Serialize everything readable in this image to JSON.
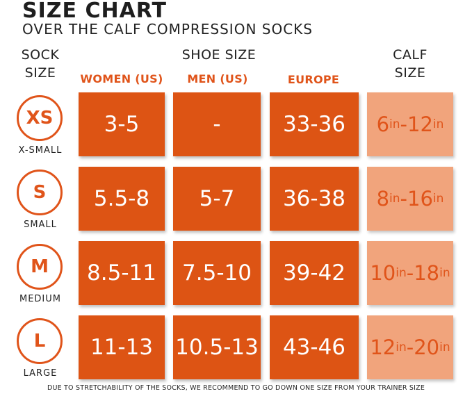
{
  "title": "SIZE CHART",
  "subtitle": "OVER THE CALF COMPRESSION SOCKS",
  "headers": {
    "sock_size": "SOCK SIZE",
    "shoe_size": "SHOE SIZE",
    "women": "WOMEN (US)",
    "men": "MEN (US)",
    "europe": "EUROPE",
    "calf_size": "CALF SIZE"
  },
  "rows": [
    {
      "code": "XS",
      "name": "X-SMALL",
      "women": "3-5",
      "men": "-",
      "europe": "33-36",
      "calf_min": "6",
      "calf_max": "12",
      "unit": "in"
    },
    {
      "code": "S",
      "name": "SMALL",
      "women": "5.5-8",
      "men": "5-7",
      "europe": "36-38",
      "calf_min": "8",
      "calf_max": "16",
      "unit": "in"
    },
    {
      "code": "M",
      "name": "MEDIUM",
      "women": "8.5-11",
      "men": "7.5-10",
      "europe": "39-42",
      "calf_min": "10",
      "calf_max": "18",
      "unit": "in"
    },
    {
      "code": "L",
      "name": "LARGE",
      "women": "11-13",
      "men": "10.5-13",
      "europe": "43-46",
      "calf_min": "12",
      "calf_max": "20",
      "unit": "in"
    }
  ],
  "footer": "DUE TO STRETCHABILITY OF THE SOCKS, WE RECOMMEND TO GO DOWN ONE SIZE FROM YOUR TRAINER SIZE",
  "colors": {
    "accent": "#dd5414",
    "calf": "#f1a47c"
  }
}
